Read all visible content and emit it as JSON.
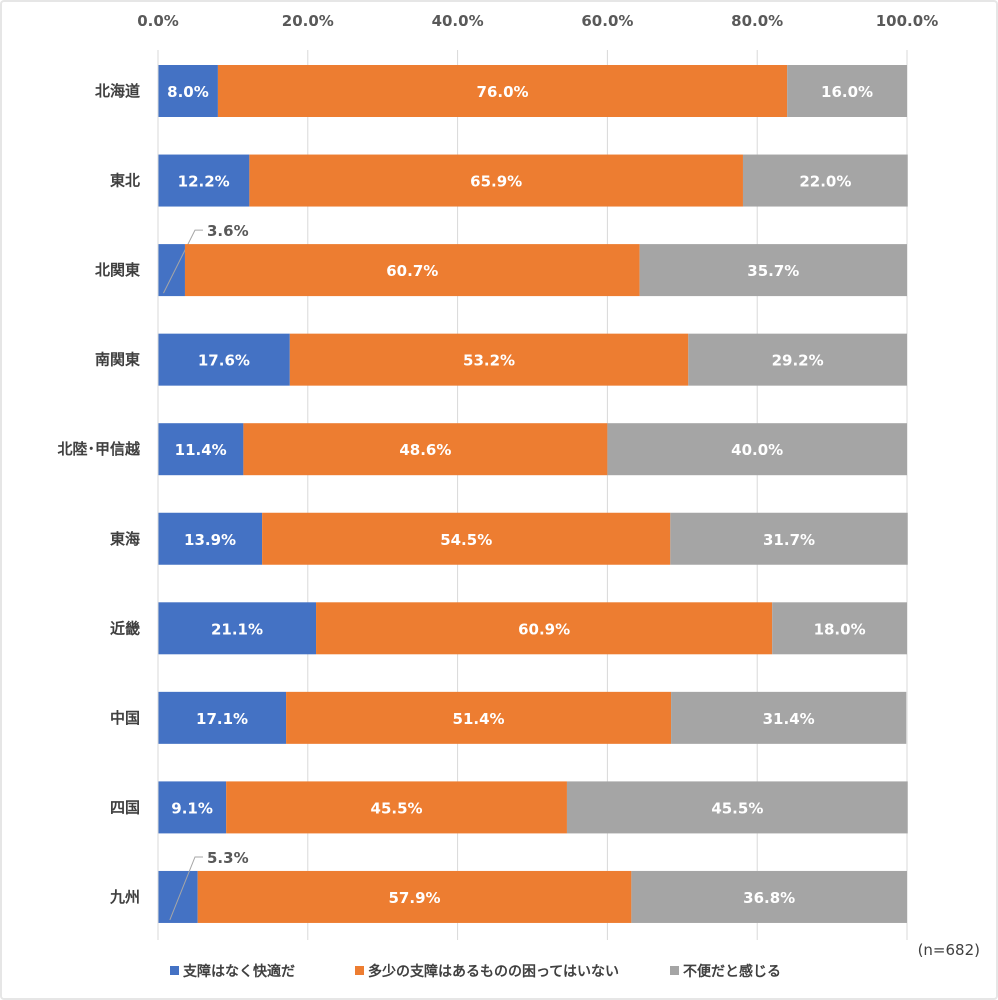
{
  "chart_data": {
    "type": "bar",
    "orientation": "horizontal",
    "stacked": "percent",
    "categories": [
      "北海道",
      "東北",
      "北関東",
      "南関東",
      "北陸･甲信越",
      "東海",
      "近畿",
      "中国",
      "四国",
      "九州"
    ],
    "series": [
      {
        "name": "支障はなく快適だ",
        "color": "#4472C4",
        "values": [
          8.0,
          12.2,
          3.6,
          17.6,
          11.4,
          13.9,
          21.1,
          17.1,
          9.1,
          5.3
        ]
      },
      {
        "name": "多少の支障はあるものの困ってはいない",
        "color": "#ED7D31",
        "values": [
          76.0,
          65.9,
          60.7,
          53.2,
          48.6,
          54.5,
          60.9,
          51.4,
          45.5,
          57.9
        ]
      },
      {
        "name": "不便だと感じる",
        "color": "#A5A5A5",
        "values": [
          16.0,
          22.0,
          35.7,
          29.2,
          40.0,
          31.7,
          18.0,
          31.4,
          45.5,
          36.8
        ]
      }
    ],
    "xlim": [
      0,
      100
    ],
    "x_ticks": [
      "0.0%",
      "20.0%",
      "40.0%",
      "60.0%",
      "80.0%",
      "100.0%"
    ],
    "grid": true,
    "legend_position": "bottom",
    "annotation": "(n=682)"
  }
}
